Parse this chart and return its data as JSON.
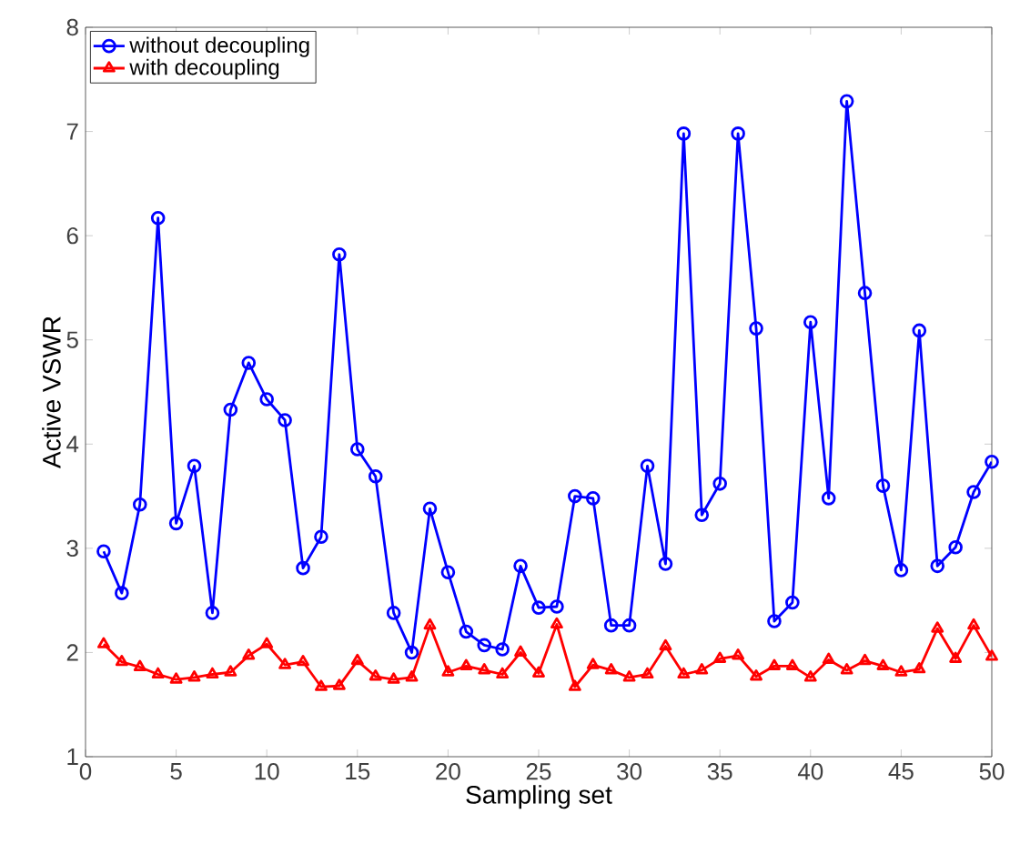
{
  "chart_data": {
    "type": "line",
    "xlabel": "Sampling set",
    "ylabel": "Active VSWR",
    "xlim": [
      0,
      50
    ],
    "ylim": [
      1,
      8
    ],
    "xticks": [
      0,
      5,
      10,
      15,
      20,
      25,
      30,
      35,
      40,
      45,
      50
    ],
    "yticks": [
      1,
      2,
      3,
      4,
      5,
      6,
      7,
      8
    ],
    "grid": false,
    "legend": "top left",
    "line_style": "solid",
    "x": [
      1,
      2,
      3,
      4,
      5,
      6,
      7,
      8,
      9,
      10,
      11,
      12,
      13,
      14,
      15,
      16,
      17,
      18,
      19,
      20,
      21,
      22,
      23,
      24,
      25,
      26,
      27,
      28,
      29,
      30,
      31,
      32,
      33,
      34,
      35,
      36,
      37,
      38,
      39,
      40,
      41,
      42,
      43,
      44,
      45,
      46,
      47,
      48,
      49,
      50
    ],
    "series": [
      {
        "name": "without decoupling",
        "color": "#0000ff",
        "marker": "circle",
        "values": [
          2.97,
          2.57,
          3.42,
          6.17,
          3.24,
          3.79,
          2.38,
          4.33,
          4.78,
          4.43,
          4.23,
          2.81,
          3.11,
          5.82,
          3.95,
          3.69,
          2.38,
          2.0,
          3.38,
          2.77,
          2.2,
          2.07,
          2.03,
          2.83,
          2.43,
          2.44,
          3.5,
          3.48,
          2.26,
          2.26,
          3.79,
          2.85,
          6.98,
          3.32,
          3.62,
          6.98,
          5.11,
          2.3,
          2.48,
          5.17,
          3.48,
          7.29,
          5.45,
          3.6,
          2.79,
          5.09,
          2.83,
          3.01,
          3.54,
          3.83
        ]
      },
      {
        "name": "with decoupling",
        "color": "#ff0000",
        "marker": "triangle",
        "values": [
          2.08,
          1.91,
          1.86,
          1.79,
          1.74,
          1.76,
          1.79,
          1.81,
          1.97,
          2.08,
          1.88,
          1.91,
          1.67,
          1.68,
          1.92,
          1.77,
          1.74,
          1.76,
          2.26,
          1.81,
          1.87,
          1.83,
          1.79,
          2.0,
          1.8,
          2.27,
          1.67,
          1.88,
          1.83,
          1.76,
          1.79,
          2.06,
          1.79,
          1.83,
          1.94,
          1.97,
          1.77,
          1.87,
          1.87,
          1.76,
          1.93,
          1.83,
          1.92,
          1.87,
          1.81,
          1.84,
          2.23,
          1.94,
          2.26,
          1.96
        ]
      }
    ]
  }
}
